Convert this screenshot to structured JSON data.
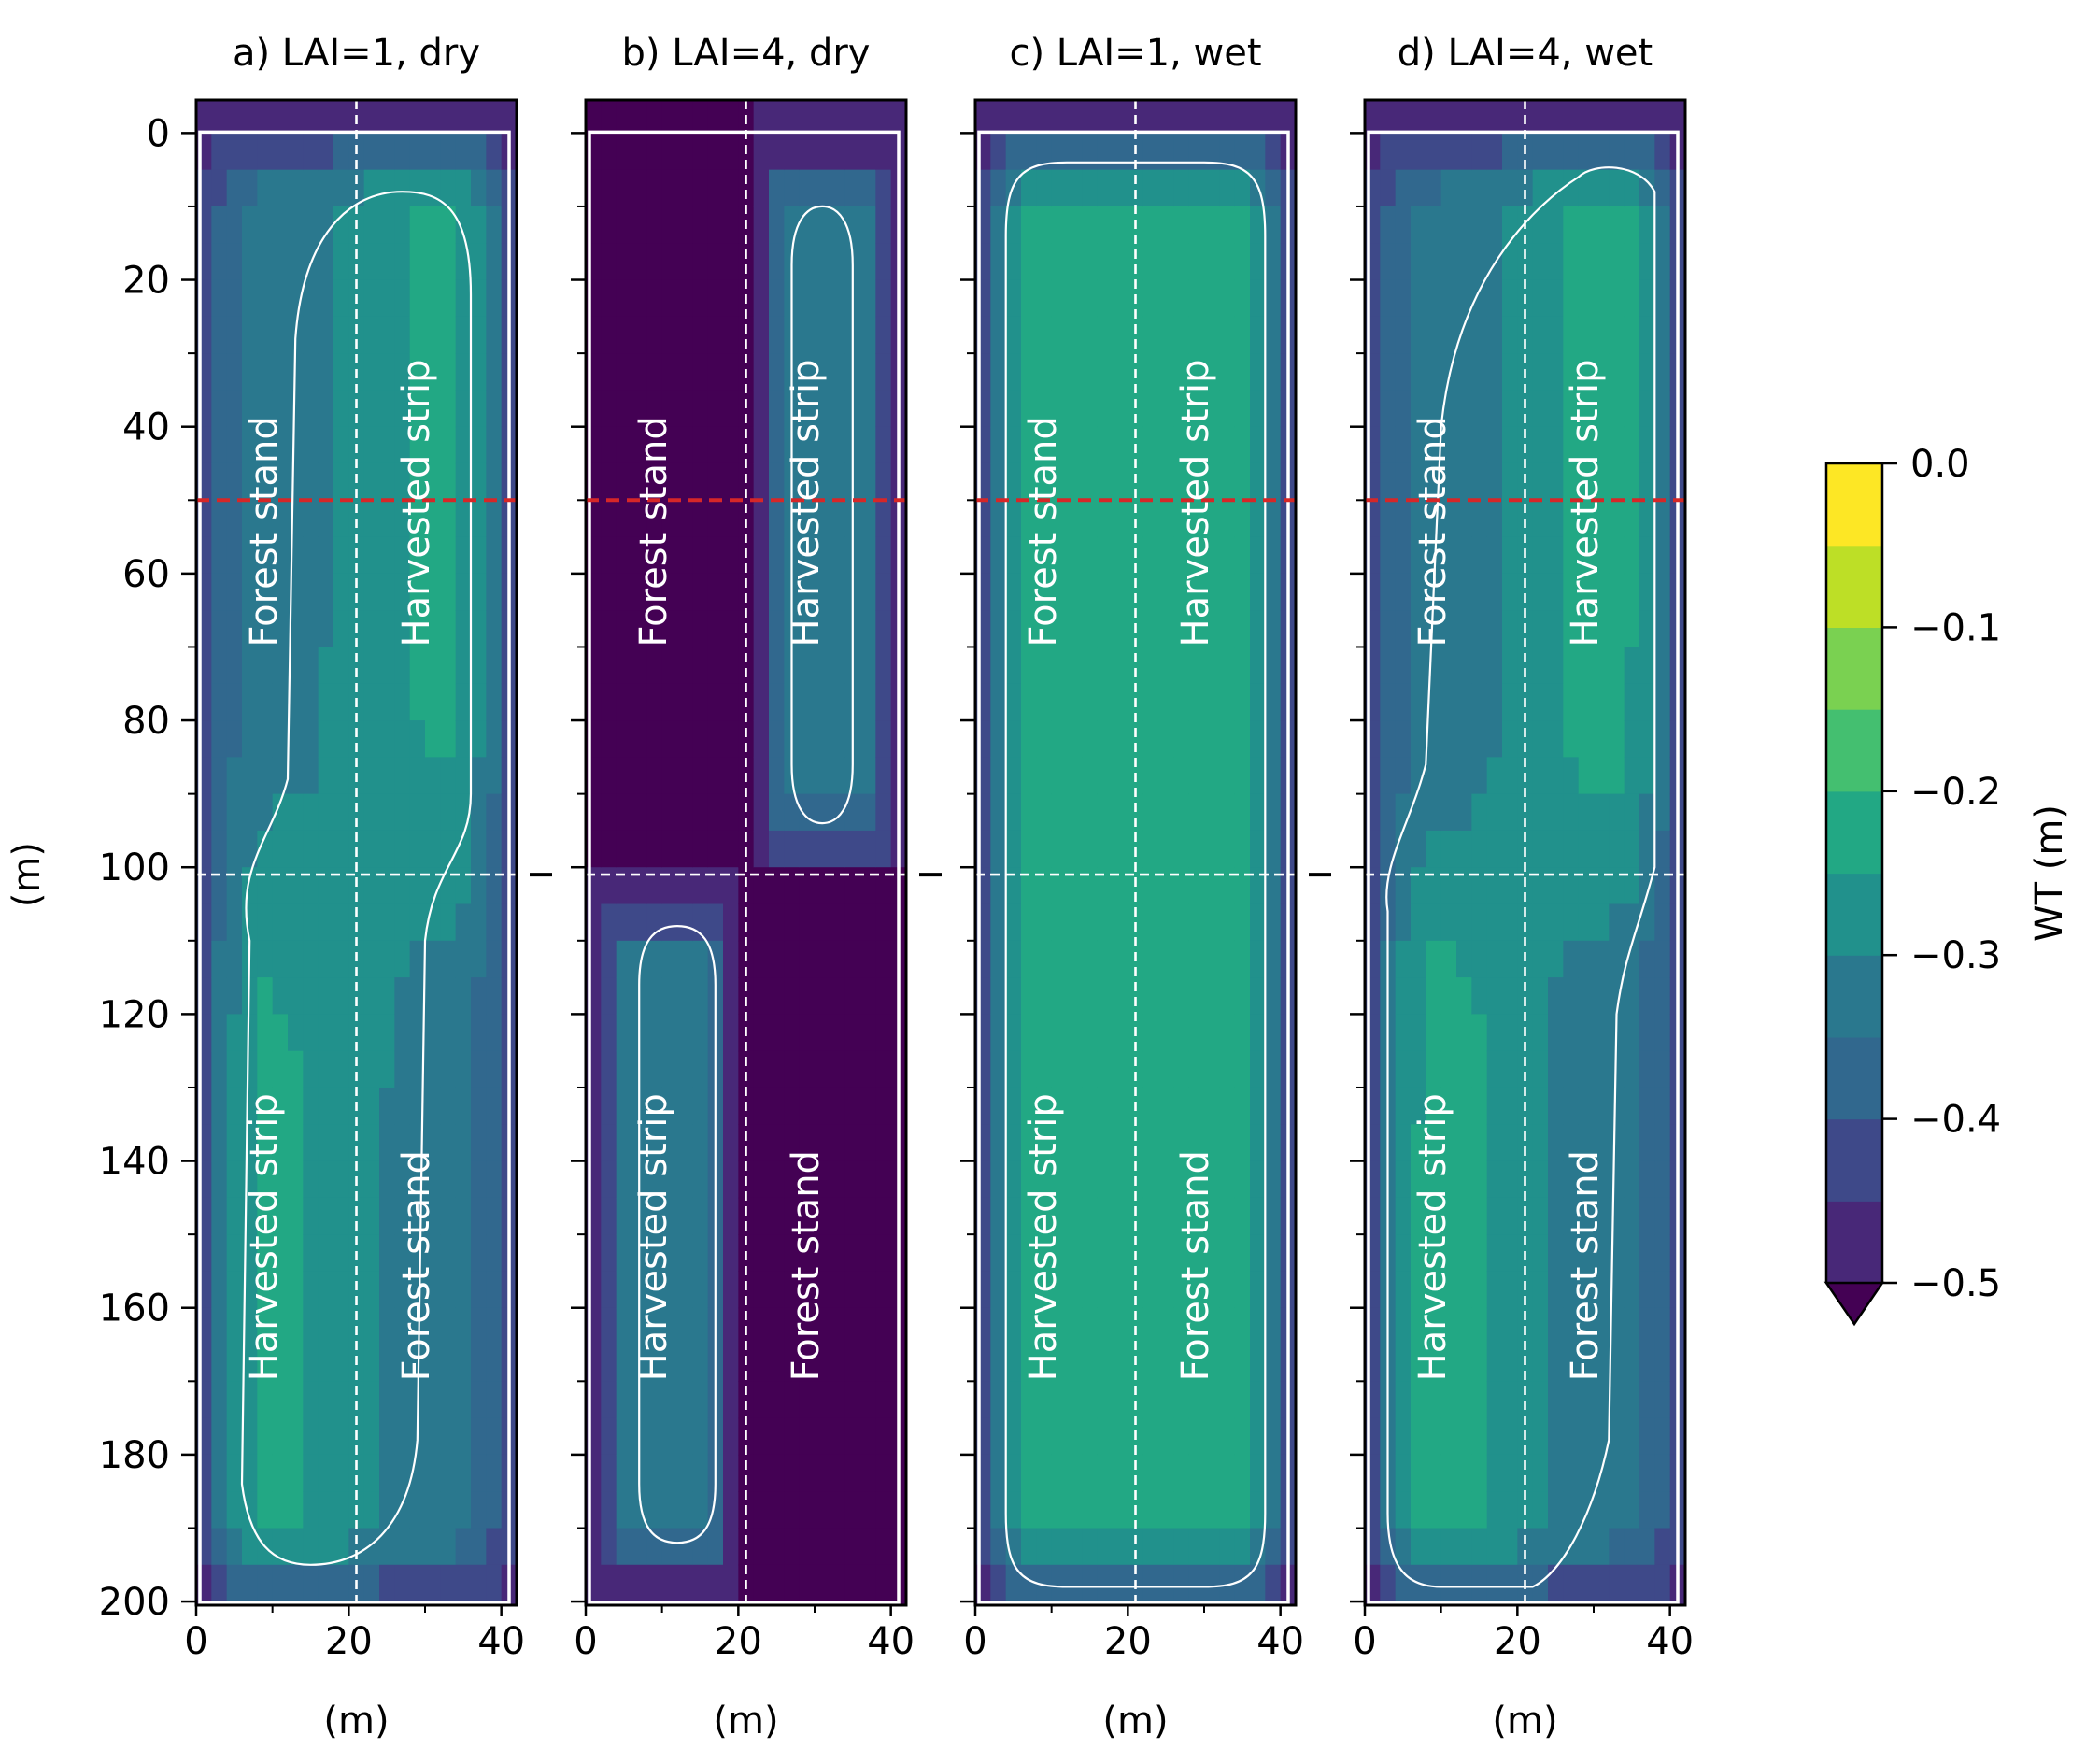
{
  "chart_data": {
    "type": "heatmap",
    "panels": [
      {
        "title": "a) LAI=1, dry",
        "variant": "a",
        "xlabel": "(m)",
        "ylabel": "(m)",
        "strip_labels": {
          "top_left": "Forest stand",
          "top_right": "Harvested strip",
          "bottom_left": "Harvested strip",
          "bottom_right": "Forest stand"
        },
        "peak_wt": {
          "top_left": -0.32,
          "top_right": -0.24,
          "bottom_left": -0.24,
          "bottom_right": -0.32
        }
      },
      {
        "title": "b) LAI=4, dry",
        "variant": "b",
        "xlabel": "(m)",
        "ylabel": "",
        "strip_labels": {
          "top_left": "Forest stand",
          "top_right": "Harvested strip",
          "bottom_left": "Harvested strip",
          "bottom_right": "Forest stand"
        },
        "peak_wt": {
          "top_left": -0.5,
          "top_right": -0.32,
          "bottom_left": -0.32,
          "bottom_right": -0.5
        }
      },
      {
        "title": "c) LAI=1, wet",
        "variant": "c",
        "xlabel": "(m)",
        "ylabel": "",
        "strip_labels": {
          "top_left": "Forest stand",
          "top_right": "Harvested strip",
          "bottom_left": "Harvested strip",
          "bottom_right": "Forest stand"
        },
        "peak_wt": {
          "top_left": -0.23,
          "top_right": -0.23,
          "bottom_left": -0.23,
          "bottom_right": -0.23
        }
      },
      {
        "title": "d) LAI=4, wet",
        "variant": "d",
        "xlabel": "(m)",
        "ylabel": "",
        "strip_labels": {
          "top_left": "Forest stand",
          "top_right": "Harvested strip",
          "bottom_left": "Harvested strip",
          "bottom_right": "Forest stand"
        },
        "peak_wt": {
          "top_left": -0.33,
          "top_right": -0.23,
          "bottom_left": -0.23,
          "bottom_right": -0.33
        }
      }
    ],
    "x_ticks": [
      0,
      20,
      40
    ],
    "y_ticks": [
      0,
      20,
      40,
      60,
      80,
      100,
      120,
      140,
      160,
      180,
      200
    ],
    "xlim": [
      0,
      42
    ],
    "ylim": [
      200,
      0
    ],
    "divider_x": 21,
    "divider_y": 101,
    "transect_y": 50,
    "contour_level": -0.3,
    "colorbar": {
      "label": "WT (m)",
      "ticks": [
        0.0,
        -0.1,
        -0.2,
        -0.3,
        -0.4,
        -0.5
      ],
      "tick_labels": [
        "0.0",
        "−0.1",
        "−0.2",
        "−0.3",
        "−0.4",
        "−0.5"
      ],
      "levels": [
        -0.5,
        -0.45,
        -0.4,
        -0.35,
        -0.3,
        -0.25,
        -0.2,
        -0.15,
        -0.1,
        -0.05,
        0.0
      ],
      "colors": [
        "#482878",
        "#3e4989",
        "#31688e",
        "#2a788e",
        "#21918c",
        "#22a884",
        "#44bf70",
        "#7ad151",
        "#bddf26",
        "#fde725"
      ],
      "under_color": "#440154",
      "extend": "min"
    },
    "colors": {
      "divider": "#ffffff",
      "contour": "#ffffff",
      "transect": "#d62728",
      "axis": "#000000"
    }
  }
}
